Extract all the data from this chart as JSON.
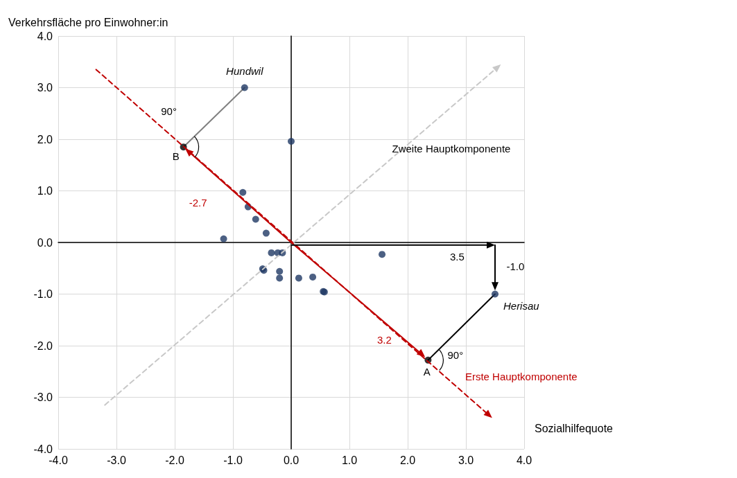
{
  "chart_data": {
    "type": "scatter",
    "xlabel": "Sozialhilfequote",
    "ylabel": "Verkehrsfläche pro Einwohner:in",
    "xlim": [
      -4,
      4
    ],
    "ylim": [
      -4,
      4
    ],
    "xticks": [
      {
        "value": -4,
        "label": "-4.0"
      },
      {
        "value": -3,
        "label": "-3.0"
      },
      {
        "value": -2,
        "label": "-2.0"
      },
      {
        "value": -1,
        "label": "-1.0"
      },
      {
        "value": 0,
        "label": "0.0"
      },
      {
        "value": 1,
        "label": "1.0"
      },
      {
        "value": 2,
        "label": "2.0"
      },
      {
        "value": 3,
        "label": "3.0"
      },
      {
        "value": 4,
        "label": "4.0"
      }
    ],
    "yticks": [
      {
        "value": -4,
        "label": "-4.0"
      },
      {
        "value": -3,
        "label": "-3.0"
      },
      {
        "value": -2,
        "label": "-2.0"
      },
      {
        "value": -1,
        "label": "-1.0"
      },
      {
        "value": 0,
        "label": "0.0"
      },
      {
        "value": 1,
        "label": "1.0"
      },
      {
        "value": 2,
        "label": "2.0"
      },
      {
        "value": 3,
        "label": "3.0"
      },
      {
        "value": 4,
        "label": "4.0"
      }
    ],
    "grid": true,
    "marker": "circle",
    "series": [
      {
        "color": "#1f3864",
        "x": [
          -0.8,
          3.5,
          0.0,
          -0.83,
          -0.74,
          -0.61,
          -0.43,
          -1.16,
          -0.34,
          -0.23,
          -0.15,
          -0.47,
          -0.49,
          -0.2,
          -0.2,
          0.13,
          0.37,
          0.55,
          0.57,
          1.56
        ],
        "values": [
          3.0,
          -1.0,
          1.96,
          0.97,
          0.69,
          0.45,
          0.18,
          0.07,
          -0.2,
          -0.2,
          -0.2,
          -0.54,
          -0.51,
          -0.56,
          -0.69,
          -0.69,
          -0.67,
          -0.95,
          -0.96,
          -0.23
        ]
      },
      {
        "color": "#000000",
        "x": [
          2.35,
          -1.85
        ],
        "values": [
          -2.28,
          1.85
        ]
      },
      {
        "type": "line",
        "color": "#808080",
        "line_style": "solid",
        "marker": "none",
        "x": [
          -0.8,
          -1.85
        ],
        "values": [
          3.0,
          1.85
        ]
      },
      {
        "type": "line",
        "color": "#000000",
        "line_style": "solid",
        "marker": "none",
        "x": [
          3.5,
          2.35
        ],
        "values": [
          -1.0,
          -2.28
        ]
      }
    ],
    "annotations": [
      "Hundwil",
      "Herisau",
      "B",
      "A",
      "90°",
      "90°",
      "3.5",
      "-1.0",
      "-2.7",
      "3.2",
      "Zweite Hauptkomponente",
      "Erste Hauptkomponente"
    ]
  }
}
